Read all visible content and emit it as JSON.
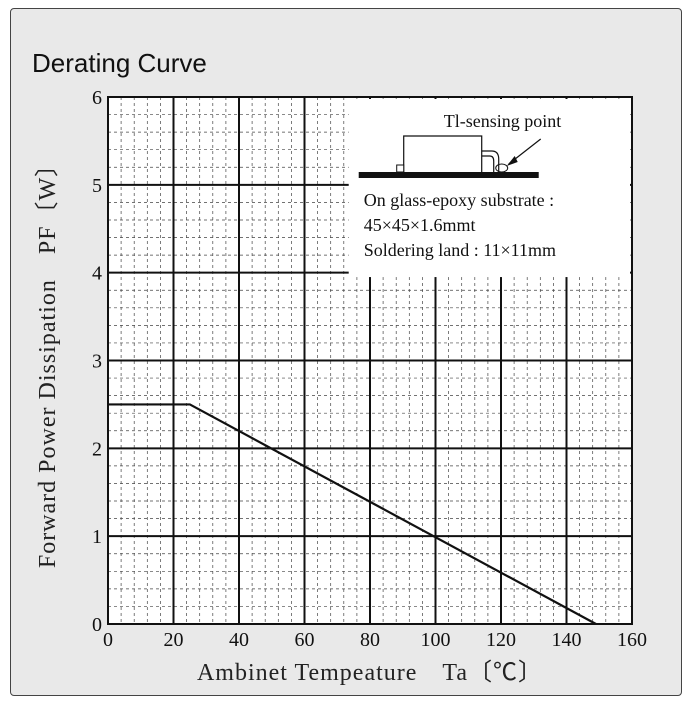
{
  "chart_data": {
    "type": "line",
    "title": "Derating Curve",
    "xlabel": "Ambinet Tempeature　Ta〔℃〕",
    "ylabel": "Forward Power Dissipation　PF〔W〕",
    "xlim": [
      0,
      160
    ],
    "ylim": [
      0,
      6
    ],
    "x_ticks": [
      "0",
      "20",
      "40",
      "60",
      "80",
      "100",
      "120",
      "140",
      "160"
    ],
    "y_ticks": [
      "0",
      "1",
      "2",
      "3",
      "4",
      "5",
      "6"
    ],
    "grid": true,
    "series": [
      {
        "x": [
          0,
          25,
          149
        ],
        "y": [
          2.5,
          2.5,
          0
        ]
      }
    ],
    "annotation": {
      "sensing_label": "Tl-sensing point",
      "lines": [
        "On glass-epoxy substrate :",
        "45×45×1.6mmt",
        "Soldering land : 11×11mm"
      ]
    }
  }
}
